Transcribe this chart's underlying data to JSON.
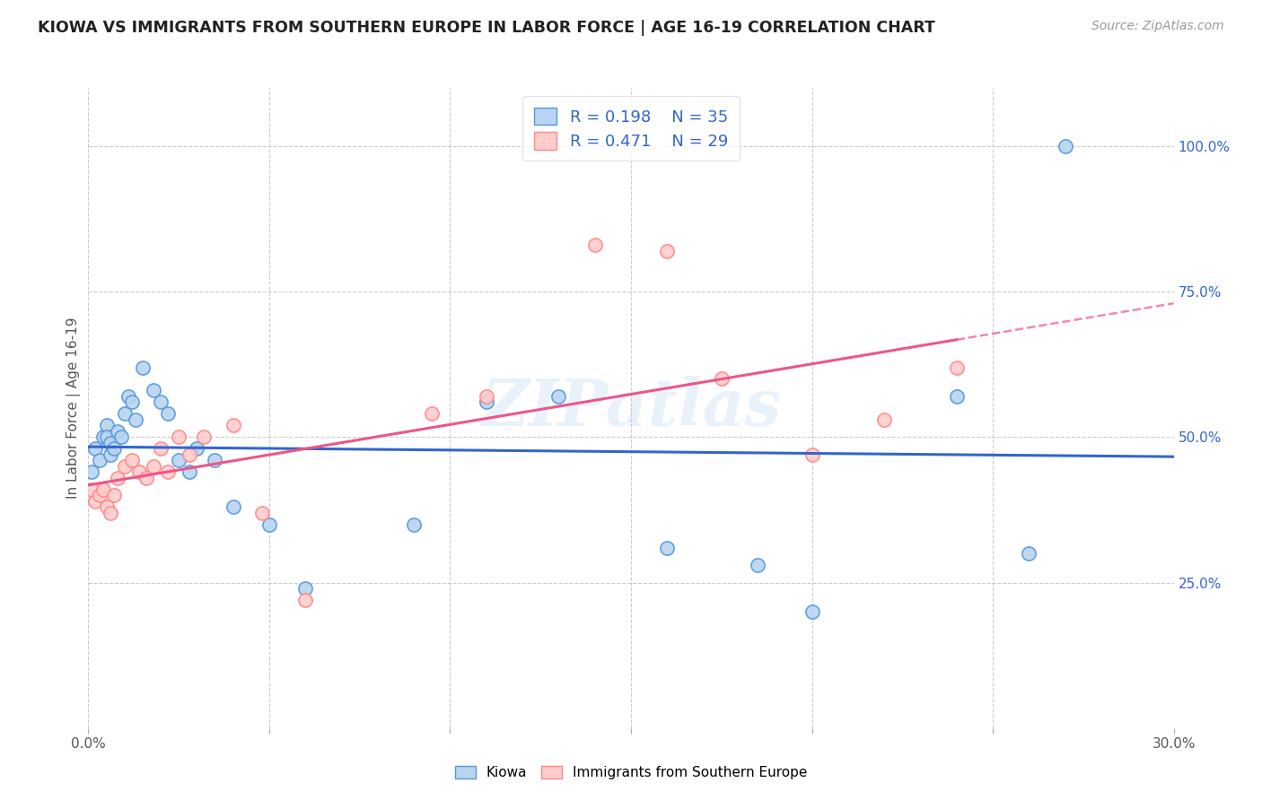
{
  "title": "KIOWA VS IMMIGRANTS FROM SOUTHERN EUROPE IN LABOR FORCE | AGE 16-19 CORRELATION CHART",
  "source": "Source: ZipAtlas.com",
  "ylabel": "In Labor Force | Age 16-19",
  "xlim": [
    0.0,
    0.3
  ],
  "ylim": [
    0.0,
    1.1
  ],
  "x_ticks": [
    0.0,
    0.05,
    0.1,
    0.15,
    0.2,
    0.25,
    0.3
  ],
  "x_tick_labels": [
    "0.0%",
    "",
    "",
    "",
    "",
    "",
    "30.0%"
  ],
  "y_ticks_right": [
    0.0,
    0.25,
    0.5,
    0.75,
    1.0
  ],
  "y_tick_labels_right": [
    "",
    "25.0%",
    "50.0%",
    "75.0%",
    "100.0%"
  ],
  "legend_r1": "0.198",
  "legend_n1": "35",
  "legend_r2": "0.471",
  "legend_n2": "29",
  "kiowa_face": "#b8d4f0",
  "kiowa_edge": "#5599dd",
  "immigrants_face": "#ffcccc",
  "immigrants_edge": "#ff8888",
  "trendline_blue": "#3366cc",
  "trendline_pink": "#ee5588",
  "watermark": "ZIPatlas",
  "bg": "#ffffff",
  "kiowa_x": [
    0.001,
    0.002,
    0.003,
    0.004,
    0.005,
    0.005,
    0.006,
    0.006,
    0.007,
    0.008,
    0.009,
    0.01,
    0.011,
    0.012,
    0.013,
    0.015,
    0.018,
    0.02,
    0.022,
    0.025,
    0.028,
    0.03,
    0.035,
    0.04,
    0.05,
    0.06,
    0.09,
    0.11,
    0.13,
    0.16,
    0.185,
    0.2,
    0.24,
    0.26,
    0.27
  ],
  "kiowa_y": [
    0.44,
    0.48,
    0.46,
    0.5,
    0.52,
    0.5,
    0.49,
    0.47,
    0.48,
    0.51,
    0.5,
    0.54,
    0.57,
    0.56,
    0.53,
    0.62,
    0.58,
    0.56,
    0.54,
    0.46,
    0.44,
    0.48,
    0.46,
    0.38,
    0.35,
    0.24,
    0.35,
    0.56,
    0.57,
    0.31,
    0.28,
    0.2,
    0.57,
    0.3,
    1.0
  ],
  "immigrants_x": [
    0.001,
    0.002,
    0.003,
    0.004,
    0.005,
    0.006,
    0.007,
    0.008,
    0.01,
    0.012,
    0.014,
    0.016,
    0.018,
    0.02,
    0.022,
    0.025,
    0.028,
    0.032,
    0.04,
    0.048,
    0.06,
    0.095,
    0.11,
    0.14,
    0.16,
    0.175,
    0.2,
    0.22,
    0.24
  ],
  "immigrants_y": [
    0.41,
    0.39,
    0.4,
    0.41,
    0.38,
    0.37,
    0.4,
    0.43,
    0.45,
    0.46,
    0.44,
    0.43,
    0.45,
    0.48,
    0.44,
    0.5,
    0.47,
    0.5,
    0.52,
    0.37,
    0.22,
    0.54,
    0.57,
    0.83,
    0.82,
    0.6,
    0.47,
    0.53,
    0.62
  ]
}
